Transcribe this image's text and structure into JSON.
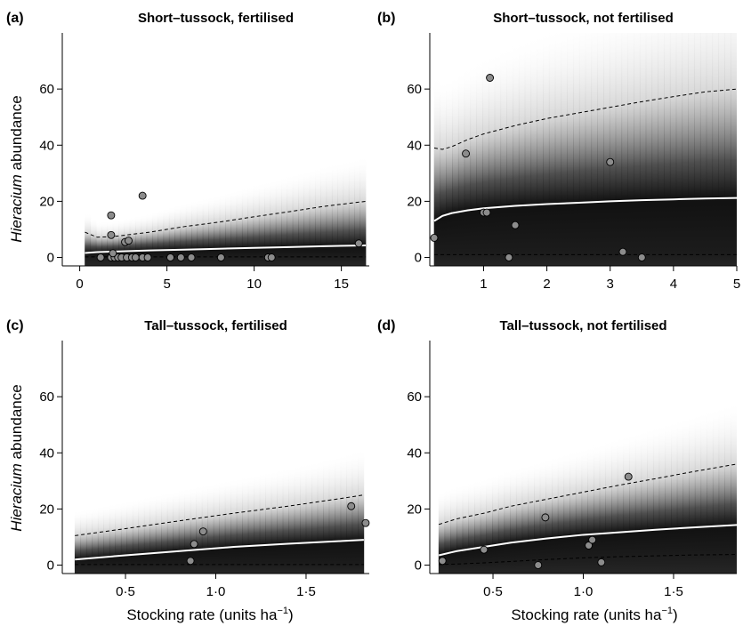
{
  "figure": {
    "ylabel_italic": "Hieracium",
    "ylabel_rest": " abundance",
    "xlabel_main": "Stocking rate (units ha",
    "xlabel_sup": "−1",
    "xlabel_close": ")"
  },
  "chart_data": [
    {
      "type": "scatter",
      "label": "(a)",
      "title": "Short–tussock, fertilised",
      "xlim": [
        -1,
        16.6
      ],
      "ylim": [
        -3,
        80
      ],
      "xticks": [
        0,
        5,
        10,
        15
      ],
      "xtick_labels": [
        "0",
        "5",
        "10",
        "15"
      ],
      "yticks": [
        0,
        20,
        40,
        60
      ],
      "ytick_labels": [
        "0",
        "20",
        "40",
        "60"
      ],
      "show_ylabel": true,
      "show_xlabel": false,
      "fit": {
        "x": [
          0.3,
          1,
          2,
          4,
          6,
          8,
          10,
          12,
          14,
          16.4
        ],
        "mean": [
          1.6,
          1.9,
          2.1,
          2.5,
          2.8,
          3.1,
          3.4,
          3.7,
          4.0,
          4.3
        ],
        "upper": [
          9,
          7.2,
          7.5,
          9,
          11,
          12.6,
          14.5,
          16.3,
          18.2,
          20
        ],
        "lower": [
          0.2,
          0.2,
          0.2,
          0.2,
          0.2,
          0.2,
          0.2,
          0.2,
          0.2,
          0.2
        ]
      },
      "points": {
        "x": [
          1.8,
          1.8,
          2.6,
          2.8,
          3.6,
          1.2,
          1.8,
          2.0,
          2.2,
          2.4,
          2.7,
          3.0,
          3.2,
          3.6,
          3.9,
          5.2,
          5.8,
          6.4,
          8.1,
          10.8,
          11.0,
          16.0,
          1.9
        ],
        "y": [
          15,
          8,
          5.5,
          6,
          22,
          0,
          0,
          0,
          0,
          0,
          0,
          0,
          0,
          0,
          0,
          0,
          0,
          0,
          0,
          0,
          0,
          5,
          1.5
        ]
      }
    },
    {
      "type": "scatter",
      "label": "(b)",
      "title": "Short–tussock, not fertilised",
      "xlim": [
        0.15,
        5
      ],
      "ylim": [
        -3,
        80
      ],
      "xticks": [
        1,
        2,
        3,
        4,
        5
      ],
      "xtick_labels": [
        "1",
        "2",
        "3",
        "4",
        "5"
      ],
      "yticks": [
        0,
        20,
        40,
        60
      ],
      "ytick_labels": [
        "0",
        "20",
        "40",
        "60"
      ],
      "show_ylabel": false,
      "show_xlabel": false,
      "fit": {
        "x": [
          0.22,
          0.35,
          0.5,
          0.75,
          1.0,
          1.5,
          2.0,
          2.5,
          3.0,
          3.5,
          4.0,
          4.5,
          5.0
        ],
        "mean": [
          13,
          14.8,
          15.8,
          16.8,
          17.5,
          18.4,
          19.0,
          19.5,
          20.0,
          20.4,
          20.7,
          21.0,
          21.2
        ],
        "upper": [
          39,
          38.5,
          39.5,
          42,
          44,
          47,
          49.5,
          51.5,
          53.5,
          55.5,
          57.3,
          59,
          60
        ],
        "lower": [
          1,
          1,
          1,
          1,
          1,
          1,
          1,
          1,
          1,
          1,
          1,
          1,
          1
        ]
      },
      "points": {
        "x": [
          0.22,
          0.72,
          1.0,
          1.05,
          1.1,
          1.4,
          1.5,
          3.0,
          3.2,
          3.5
        ],
        "y": [
          7,
          37,
          16,
          16,
          64,
          0,
          11.5,
          34,
          2,
          0
        ]
      }
    },
    {
      "type": "scatter",
      "label": "(c)",
      "title": "Tall–tussock, fertilised",
      "xlim": [
        0.15,
        1.85
      ],
      "ylim": [
        -3,
        80
      ],
      "xticks": [
        0.5,
        1.0,
        1.5
      ],
      "xtick_labels": [
        "0·5",
        "1·0",
        "1·5"
      ],
      "yticks": [
        0,
        20,
        40,
        60
      ],
      "ytick_labels": [
        "0",
        "20",
        "40",
        "60"
      ],
      "show_ylabel": true,
      "show_xlabel": true,
      "fit": {
        "x": [
          0.22,
          0.5,
          0.8,
          1.1,
          1.4,
          1.7,
          1.82
        ],
        "mean": [
          2,
          3.5,
          5,
          6.5,
          7.6,
          8.6,
          9
        ],
        "upper": [
          10.5,
          13,
          15.8,
          18.5,
          21,
          23.8,
          25
        ],
        "lower": [
          0.2,
          0.2,
          0.2,
          0.2,
          0.2,
          0.2,
          0.2
        ]
      },
      "points": {
        "x": [
          0.86,
          0.88,
          0.93,
          1.75,
          1.83
        ],
        "y": [
          1.5,
          7.5,
          12,
          21,
          15
        ]
      }
    },
    {
      "type": "scatter",
      "label": "(d)",
      "title": "Tall–tussock, not fertilised",
      "xlim": [
        0.15,
        1.85
      ],
      "ylim": [
        -3,
        80
      ],
      "xticks": [
        0.5,
        1.0,
        1.5
      ],
      "xtick_labels": [
        "0·5",
        "1·0",
        "1·5"
      ],
      "yticks": [
        0,
        20,
        40,
        60
      ],
      "ytick_labels": [
        "0",
        "20",
        "40",
        "60"
      ],
      "show_ylabel": false,
      "show_xlabel": true,
      "fit": {
        "x": [
          0.2,
          0.3,
          0.45,
          0.6,
          0.8,
          1.0,
          1.2,
          1.4,
          1.6,
          1.85
        ],
        "mean": [
          3.5,
          5,
          6.5,
          8,
          9.5,
          10.8,
          11.7,
          12.6,
          13.4,
          14.3
        ],
        "upper": [
          14.5,
          16.5,
          18.5,
          21,
          23.5,
          26,
          28.5,
          30.8,
          33.2,
          36
        ],
        "lower": [
          0.2,
          0.4,
          0.8,
          1.3,
          2.0,
          2.6,
          3.0,
          3.3,
          3.6,
          3.8
        ]
      },
      "points": {
        "x": [
          0.22,
          0.45,
          0.75,
          0.79,
          1.03,
          1.05,
          1.1,
          1.25
        ],
        "y": [
          1.5,
          5.5,
          0,
          17,
          7,
          9,
          1,
          31.5
        ]
      }
    }
  ]
}
